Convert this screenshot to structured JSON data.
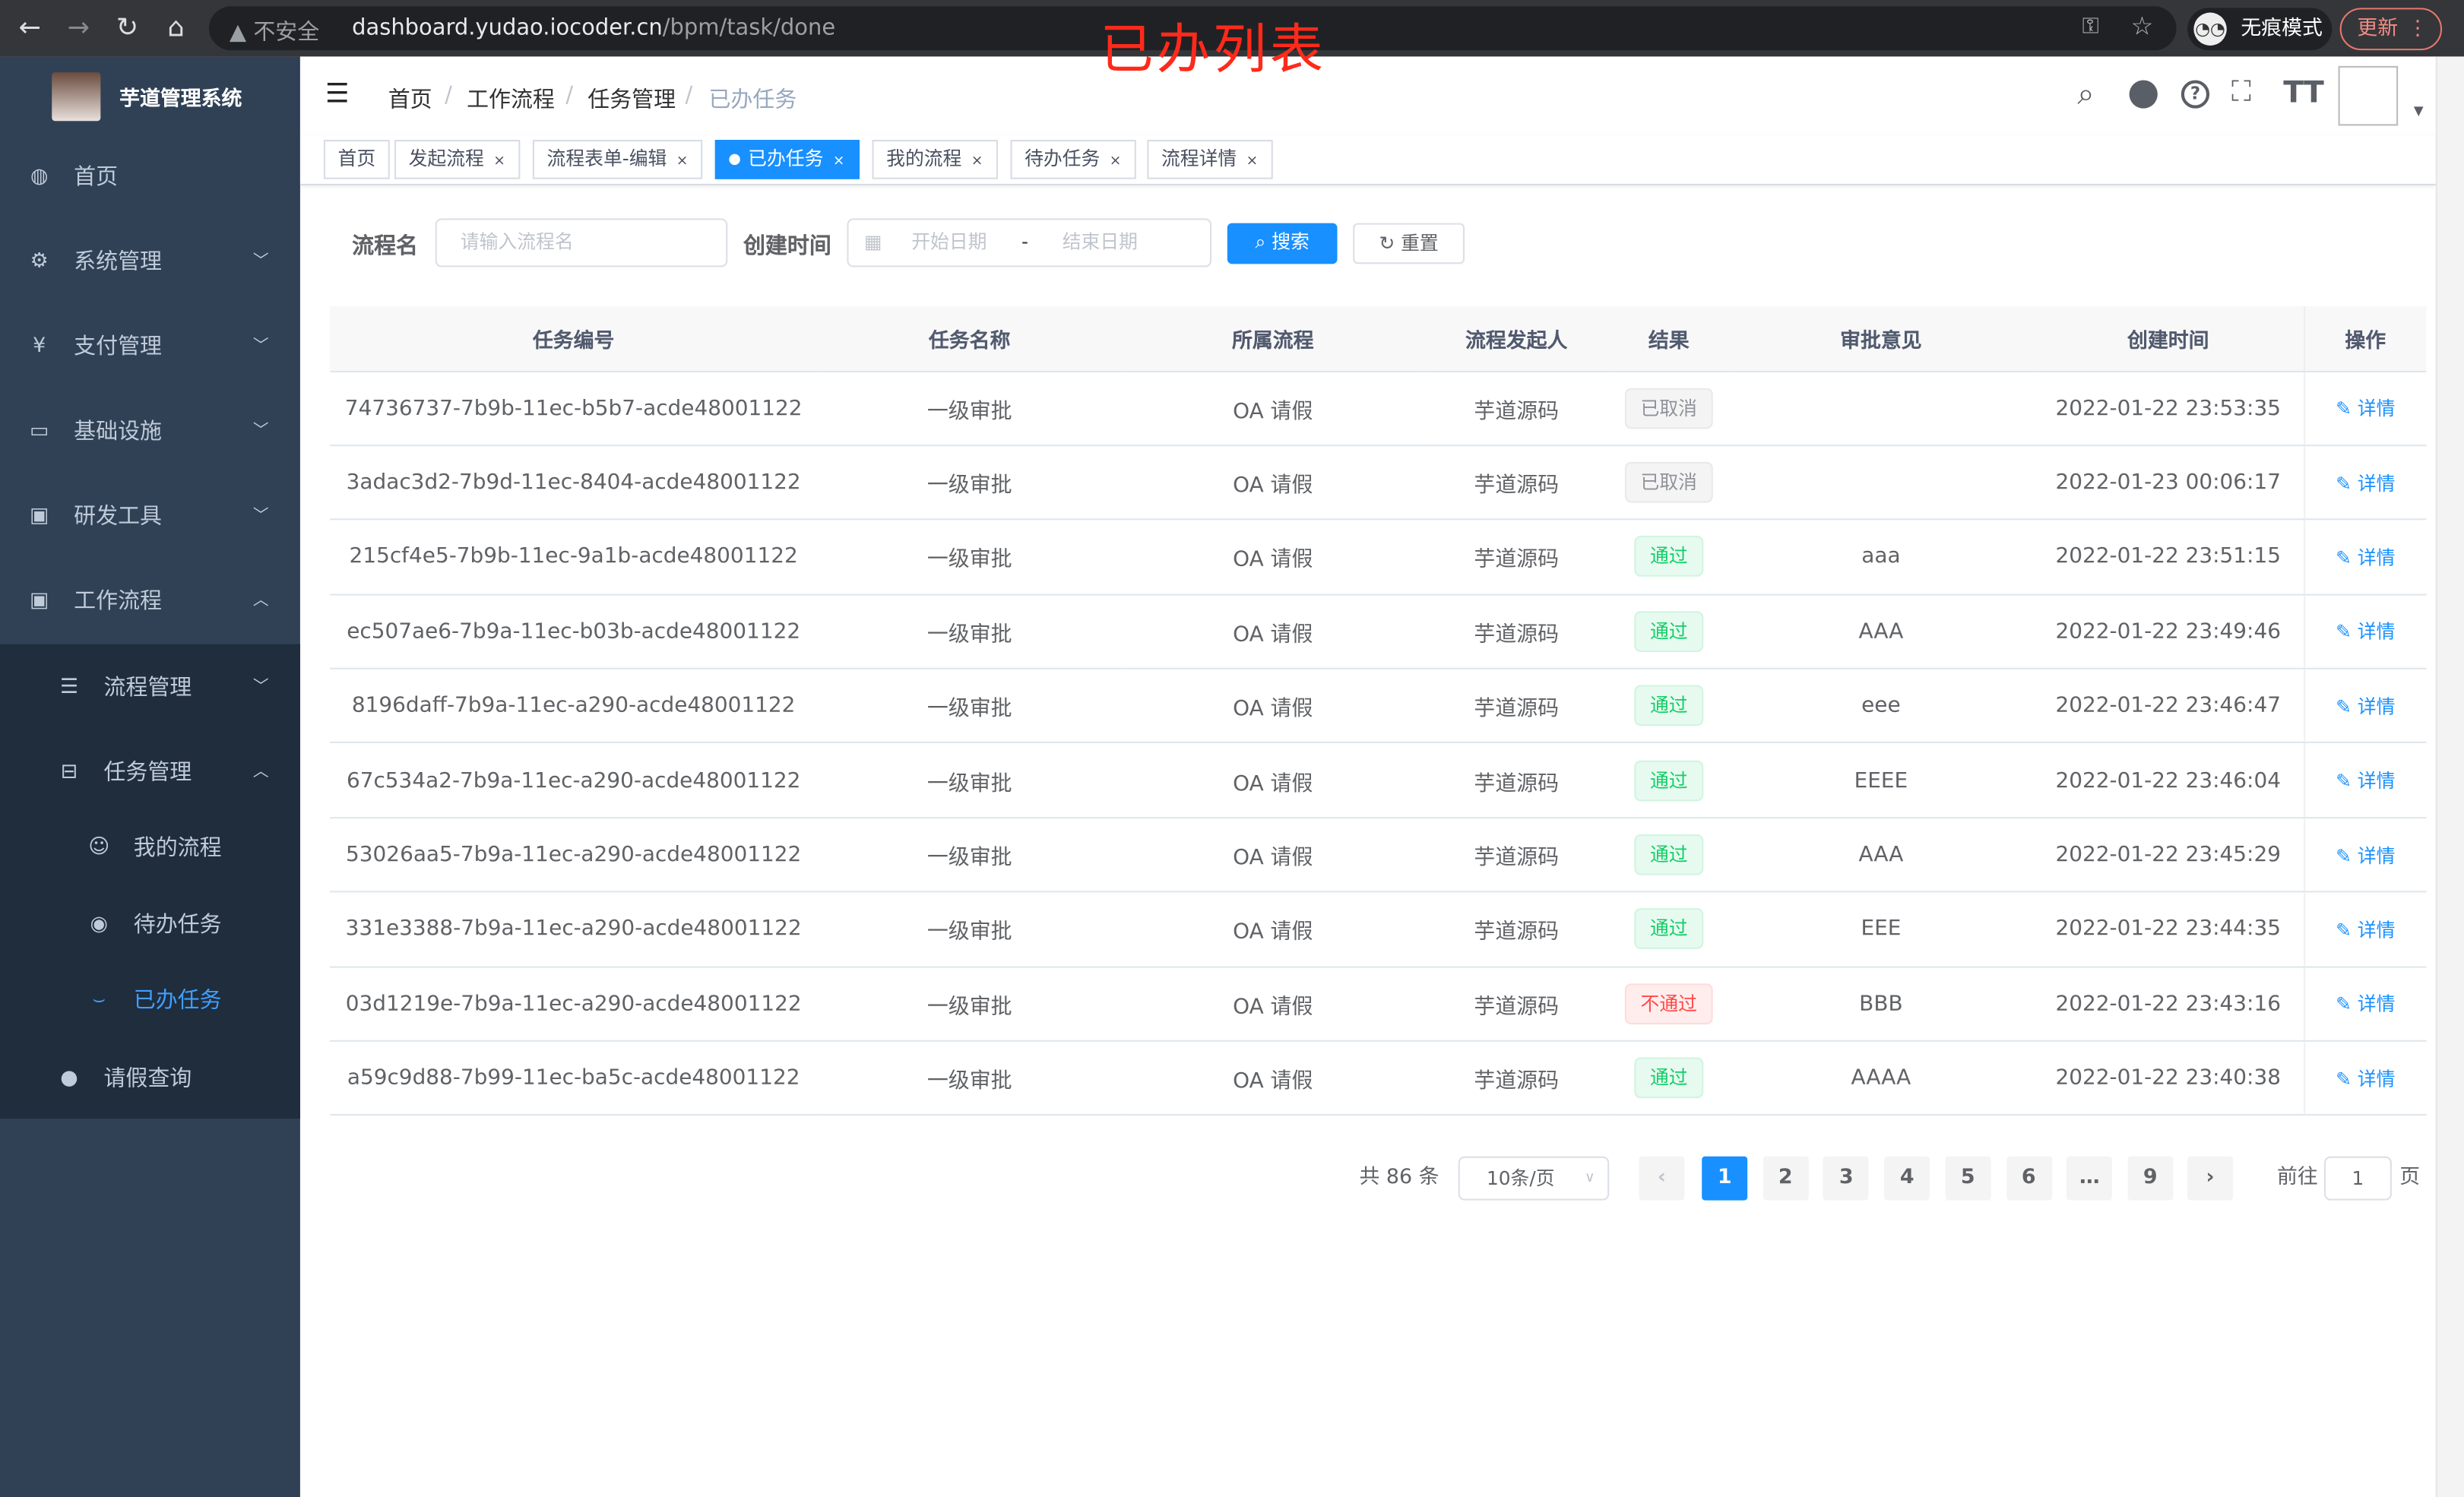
{
  "browser": {
    "insecure_label": "不安全",
    "url_host": "dashboard.yudao.iocoder.cn",
    "url_path": "/bpm/task/done",
    "incognito_label": "无痕模式",
    "update_label": "更新"
  },
  "annotation": "已办列表",
  "sidebar": {
    "title": "芋道管理系统",
    "items": [
      {
        "label": "首页",
        "icon": "dashboard-icon"
      },
      {
        "label": "系统管理",
        "icon": "gear-icon"
      },
      {
        "label": "支付管理",
        "icon": "yen-icon"
      },
      {
        "label": "基础设施",
        "icon": "monitor-icon"
      },
      {
        "label": "研发工具",
        "icon": "toolbox-icon"
      },
      {
        "label": "工作流程",
        "icon": "toolbox-icon"
      },
      {
        "label": "流程管理",
        "icon": "list-tree-icon"
      },
      {
        "label": "任务管理",
        "icon": "tree-icon"
      },
      {
        "label": "我的流程",
        "icon": "people-icon"
      },
      {
        "label": "待办任务",
        "icon": "eye-icon"
      },
      {
        "label": "已办任务",
        "icon": "eye-closed-icon"
      },
      {
        "label": "请假查询",
        "icon": "user-icon"
      }
    ]
  },
  "breadcrumb": [
    "首页",
    "工作流程",
    "任务管理",
    "已办任务"
  ],
  "tags": [
    "首页",
    "发起流程",
    "流程表单-编辑",
    "已办任务",
    "我的流程",
    "待办任务",
    "流程详情"
  ],
  "filter": {
    "name_label": "流程名",
    "name_placeholder": "请输入流程名",
    "time_label": "创建时间",
    "start_placeholder": "开始日期",
    "separator": "-",
    "end_placeholder": "结束日期",
    "search_label": "搜索",
    "reset_label": "重置"
  },
  "table": {
    "columns": [
      "任务编号",
      "任务名称",
      "所属流程",
      "流程发起人",
      "结果",
      "审批意见",
      "创建时间",
      "操作"
    ],
    "action_label": "详情",
    "rows": [
      {
        "id": "74736737-7b9b-11ec-b5b7-acde48001122",
        "name": "一级审批",
        "process": "OA 请假",
        "starter": "芋道源码",
        "result": "已取消",
        "status": "cancel",
        "comment": "",
        "time": "2022-01-22 23:53:35"
      },
      {
        "id": "3adac3d2-7b9d-11ec-8404-acde48001122",
        "name": "一级审批",
        "process": "OA 请假",
        "starter": "芋道源码",
        "result": "已取消",
        "status": "cancel",
        "comment": "",
        "time": "2022-01-23 00:06:17"
      },
      {
        "id": "215cf4e5-7b9b-11ec-9a1b-acde48001122",
        "name": "一级审批",
        "process": "OA 请假",
        "starter": "芋道源码",
        "result": "通过",
        "status": "pass",
        "comment": "aaa",
        "time": "2022-01-22 23:51:15"
      },
      {
        "id": "ec507ae6-7b9a-11ec-b03b-acde48001122",
        "name": "一级审批",
        "process": "OA 请假",
        "starter": "芋道源码",
        "result": "通过",
        "status": "pass",
        "comment": "AAA",
        "time": "2022-01-22 23:49:46"
      },
      {
        "id": "8196daff-7b9a-11ec-a290-acde48001122",
        "name": "一级审批",
        "process": "OA 请假",
        "starter": "芋道源码",
        "result": "通过",
        "status": "pass",
        "comment": "eee",
        "time": "2022-01-22 23:46:47"
      },
      {
        "id": "67c534a2-7b9a-11ec-a290-acde48001122",
        "name": "一级审批",
        "process": "OA 请假",
        "starter": "芋道源码",
        "result": "通过",
        "status": "pass",
        "comment": "EEEE",
        "time": "2022-01-22 23:46:04"
      },
      {
        "id": "53026aa5-7b9a-11ec-a290-acde48001122",
        "name": "一级审批",
        "process": "OA 请假",
        "starter": "芋道源码",
        "result": "通过",
        "status": "pass",
        "comment": "AAA",
        "time": "2022-01-22 23:45:29"
      },
      {
        "id": "331e3388-7b9a-11ec-a290-acde48001122",
        "name": "一级审批",
        "process": "OA 请假",
        "starter": "芋道源码",
        "result": "通过",
        "status": "pass",
        "comment": "EEE",
        "time": "2022-01-22 23:44:35"
      },
      {
        "id": "03d1219e-7b9a-11ec-a290-acde48001122",
        "name": "一级审批",
        "process": "OA 请假",
        "starter": "芋道源码",
        "result": "不通过",
        "status": "fail",
        "comment": "BBB",
        "time": "2022-01-22 23:43:16"
      },
      {
        "id": "a59c9d88-7b99-11ec-ba5c-acde48001122",
        "name": "一级审批",
        "process": "OA 请假",
        "starter": "芋道源码",
        "result": "通过",
        "status": "pass",
        "comment": "AAAA",
        "time": "2022-01-22 23:40:38"
      }
    ]
  },
  "pagination": {
    "total": "共 86 条",
    "page_size": "10条/页",
    "pages": [
      "1",
      "2",
      "3",
      "4",
      "5",
      "6",
      "…",
      "9"
    ],
    "current": "1",
    "goto_label": "前往",
    "goto_value": "1",
    "page_suffix": "页"
  },
  "colors": {
    "accent": "#1890ff",
    "sidebar": "#304156",
    "submenu": "#1f2d3d",
    "active_menu": "#409eff"
  }
}
